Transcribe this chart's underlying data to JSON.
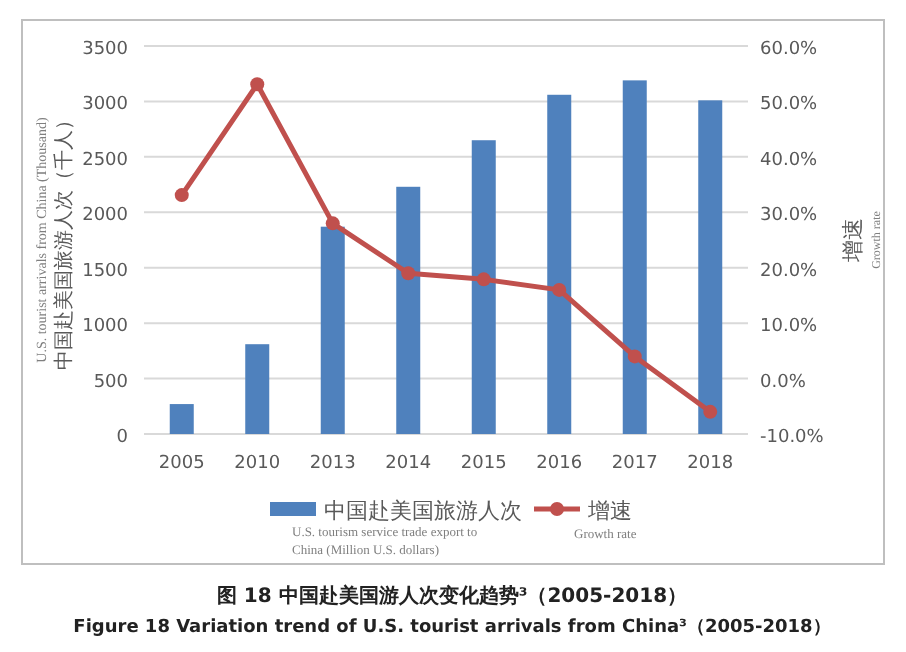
{
  "chart_data": {
    "type": "bar",
    "title": "图 18 中国赴美国游人次变化趋势³（2005-2018）",
    "subtitle": "Figure 18 Variation trend of U.S. tourist arrivals from China³（2005-2018）",
    "ylabel": "U.S. tourist arrivals from China (Thousand)\n中国赴美国旅游人次（千人）",
    "y2label": "增速\nGrowth rate",
    "categories": [
      "2005",
      "2010",
      "2013",
      "2014",
      "2015",
      "2016",
      "2017",
      "2018"
    ],
    "series": [
      {
        "name": "中国赴美国旅游人次\nU.S. tourism service trade export to\nChina (Million U.S. dollars)",
        "color": "#4f81bd",
        "values": [
          270,
          810,
          1870,
          2230,
          2650,
          3060,
          3190,
          3010
        ]
      },
      {
        "name": "增速\nGrowth rate",
        "type": "line",
        "axis": "y2",
        "color": "#c0504d",
        "marker": "circle",
        "values": [
          33.1,
          53.1,
          28.0,
          19.0,
          17.9,
          16.0,
          4.0,
          -6.0
        ]
      }
    ],
    "ylim": [
      0,
      3500
    ],
    "yticks": [
      0,
      500,
      1000,
      1500,
      2000,
      2500,
      3000,
      3500
    ],
    "y2lim": [
      -10,
      60
    ],
    "y2ticks": [
      {
        "value": -10,
        "label": "-10.0%"
      },
      {
        "value": 0,
        "label": "0.0%"
      },
      {
        "value": 10,
        "label": "10.0%"
      },
      {
        "value": 20,
        "label": "20.0%"
      },
      {
        "value": 30,
        "label": "30.0%"
      },
      {
        "value": 40,
        "label": "40.0%"
      },
      {
        "value": 50,
        "label": "50.0%"
      },
      {
        "value": 60,
        "label": "60.0%"
      }
    ],
    "grid": "y",
    "legend": "bottom"
  }
}
